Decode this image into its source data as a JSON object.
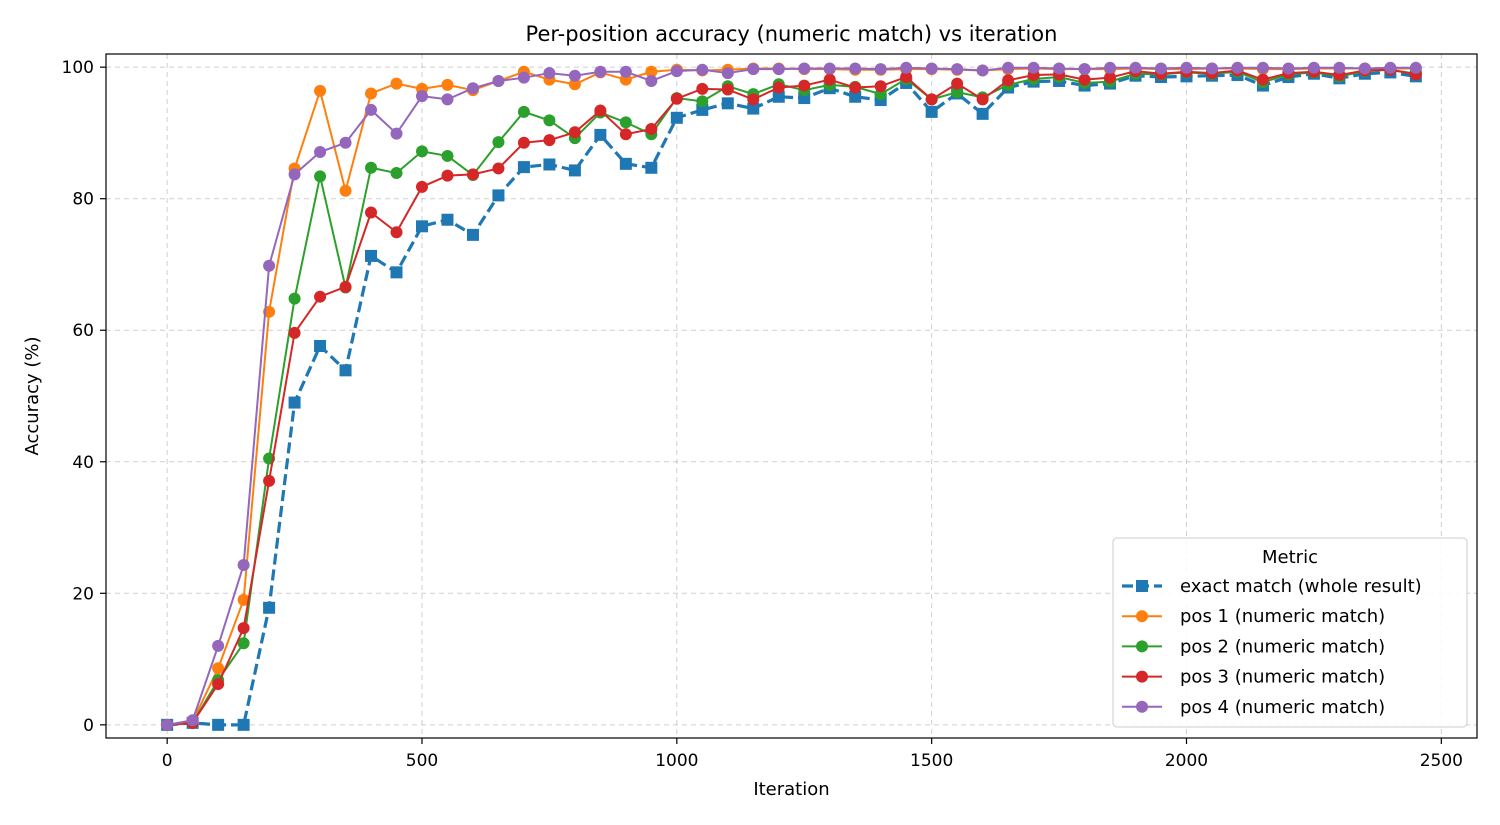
{
  "chart_data": {
    "type": "line",
    "title": "Per-position accuracy (numeric match) vs iteration",
    "xlabel": "Iteration",
    "ylabel": "Accuracy (%)",
    "xlim": [
      -120,
      2570
    ],
    "ylim": [
      -2,
      102
    ],
    "xticks": [
      0,
      500,
      1000,
      1500,
      2000,
      2500
    ],
    "yticks": [
      0,
      20,
      40,
      60,
      80,
      100
    ],
    "grid": true,
    "legend": {
      "title": "Metric",
      "placement": "bottom-right"
    },
    "x": [
      0,
      50,
      100,
      150,
      200,
      250,
      300,
      350,
      400,
      450,
      500,
      550,
      600,
      650,
      700,
      750,
      800,
      850,
      900,
      950,
      1000,
      1050,
      1100,
      1150,
      1200,
      1250,
      1300,
      1350,
      1400,
      1450,
      1500,
      1550,
      1600,
      1650,
      1700,
      1750,
      1800,
      1850,
      1900,
      1950,
      2000,
      2050,
      2100,
      2150,
      2200,
      2250,
      2300,
      2350,
      2400,
      2450
    ],
    "series": [
      {
        "name": "exact match (whole result)",
        "color": "#1f77b4",
        "marker": "square",
        "dashed": true,
        "values": [
          0,
          0.3,
          0,
          0,
          17.8,
          49,
          57.6,
          53.9,
          71.3,
          68.8,
          75.8,
          76.8,
          74.5,
          80.5,
          84.8,
          85.2,
          84.3,
          89.7,
          85.3,
          84.7,
          92.3,
          93.5,
          94.5,
          93.7,
          95.5,
          95.3,
          96.8,
          95.5,
          95,
          97.6,
          93.2,
          96,
          92.9,
          96.9,
          97.8,
          97.9,
          97.2,
          97.5,
          98.7,
          98.5,
          98.6,
          98.7,
          98.8,
          97.2,
          98.5,
          99,
          98.3,
          99,
          99.2,
          98.6
        ]
      },
      {
        "name": "pos 1 (numeric match)",
        "color": "#ff7f0e",
        "marker": "circle",
        "dashed": false,
        "values": [
          0,
          0.5,
          8.6,
          19,
          62.8,
          84.6,
          96.4,
          81.2,
          96,
          97.5,
          96.7,
          97.3,
          96.5,
          97.9,
          99.3,
          98.1,
          97.4,
          99.2,
          98.1,
          99.3,
          99.6,
          99.5,
          99.6,
          99.8,
          99.8,
          99.7,
          99.7,
          99.6,
          99.6,
          99.7,
          99.7,
          99.6,
          99.5,
          99.7,
          99.8,
          99.7,
          99.7,
          99.7,
          99.8,
          99.7,
          99.7,
          99.8,
          99.8,
          99.7,
          99.7,
          99.8,
          99.8,
          99.8,
          99.8,
          99.8
        ]
      },
      {
        "name": "pos 2 (numeric match)",
        "color": "#2ca02c",
        "marker": "circle",
        "dashed": false,
        "values": [
          0,
          0.3,
          6.8,
          12.4,
          40.5,
          64.8,
          83.4,
          66.5,
          84.7,
          83.9,
          87.2,
          86.5,
          83.6,
          88.6,
          93.2,
          91.9,
          89.2,
          93.1,
          91.6,
          89.8,
          95.3,
          94.8,
          97.1,
          95.9,
          97.4,
          96.5,
          97.3,
          97,
          95.9,
          98.2,
          95.1,
          96.2,
          95.4,
          97.3,
          98.2,
          98.5,
          97.6,
          97.8,
          99,
          98.9,
          99.2,
          99,
          99.3,
          97.7,
          98.9,
          99.2,
          98.6,
          99.4,
          99.6,
          99
        ]
      },
      {
        "name": "pos 3 (numeric match)",
        "color": "#d62728",
        "marker": "circle",
        "dashed": false,
        "values": [
          0,
          0.3,
          6.2,
          14.7,
          37.1,
          59.6,
          65.1,
          66.6,
          77.9,
          74.9,
          81.8,
          83.5,
          83.7,
          84.6,
          88.5,
          88.9,
          90.1,
          93.4,
          89.8,
          90.6,
          95.2,
          96.7,
          96.6,
          95.1,
          96.9,
          97.2,
          98.1,
          96.9,
          97.1,
          98.5,
          95.1,
          97.5,
          95.1,
          98,
          98.8,
          98.9,
          98.1,
          98.4,
          99.4,
          99,
          99.3,
          99.1,
          99.5,
          98.1,
          99.1,
          99.3,
          98.8,
          99.5,
          99.6,
          98.9
        ]
      },
      {
        "name": "pos 4 (numeric match)",
        "color": "#9467bd",
        "marker": "circle",
        "dashed": false,
        "values": [
          0,
          0.7,
          12,
          24.3,
          69.8,
          83.7,
          87.1,
          88.5,
          93.5,
          89.9,
          95.6,
          95.1,
          96.8,
          97.9,
          98.4,
          99.1,
          98.7,
          99.3,
          99.3,
          97.9,
          99.4,
          99.6,
          99.1,
          99.7,
          99.7,
          99.8,
          99.8,
          99.8,
          99.7,
          99.9,
          99.8,
          99.7,
          99.5,
          99.9,
          99.9,
          99.8,
          99.7,
          99.9,
          99.9,
          99.8,
          99.9,
          99.8,
          99.9,
          99.9,
          99.8,
          99.9,
          99.9,
          99.8,
          99.9,
          99.9
        ]
      }
    ]
  }
}
